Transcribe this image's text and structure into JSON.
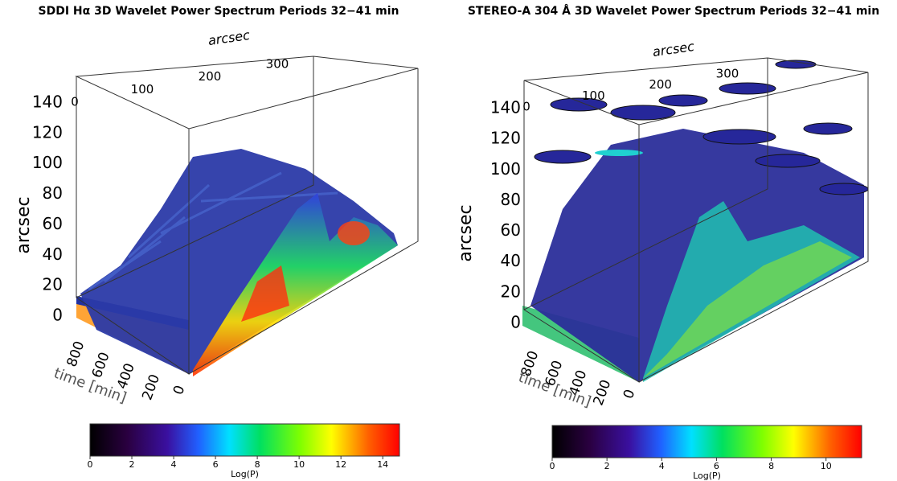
{
  "panels": [
    {
      "title": "SDDI Hα 3D Wavelet Power Spectrum Periods 32−41 min",
      "vertical_axis": {
        "label": "arcsec",
        "lim": [
          0,
          140
        ],
        "ticks": [
          0,
          20,
          40,
          60,
          80,
          100,
          120,
          140
        ]
      },
      "depth_axis": {
        "label": "time [min]",
        "lim": [
          0,
          800
        ],
        "ticks": [
          0,
          200,
          400,
          600,
          800
        ]
      },
      "top_axis": {
        "label": "arcsec",
        "lim": [
          0,
          300
        ],
        "ticks": [
          0,
          100,
          200,
          300
        ]
      },
      "colorbar": {
        "label": "Log(P)",
        "lim": [
          0,
          14.8
        ],
        "ticks": [
          0,
          2,
          4,
          6,
          8,
          10,
          12,
          14
        ]
      }
    },
    {
      "title": "STEREO-A 304 Å 3D Wavelet Power Spectrum Periods 32−41 min",
      "vertical_axis": {
        "label": "arcsec",
        "lim": [
          0,
          140
        ],
        "ticks": [
          0,
          20,
          40,
          60,
          80,
          100,
          120,
          140
        ]
      },
      "depth_axis": {
        "label": "time [min]",
        "lim": [
          0,
          800
        ],
        "ticks": [
          0,
          200,
          400,
          600,
          800
        ]
      },
      "top_axis": {
        "label": "arcsec",
        "lim": [
          0,
          300
        ],
        "ticks": [
          0,
          100,
          200,
          300
        ]
      },
      "colorbar": {
        "label": "Log(P)",
        "lim": [
          0,
          11.3
        ],
        "ticks": [
          0,
          2,
          4,
          6,
          8,
          10
        ]
      }
    }
  ]
}
